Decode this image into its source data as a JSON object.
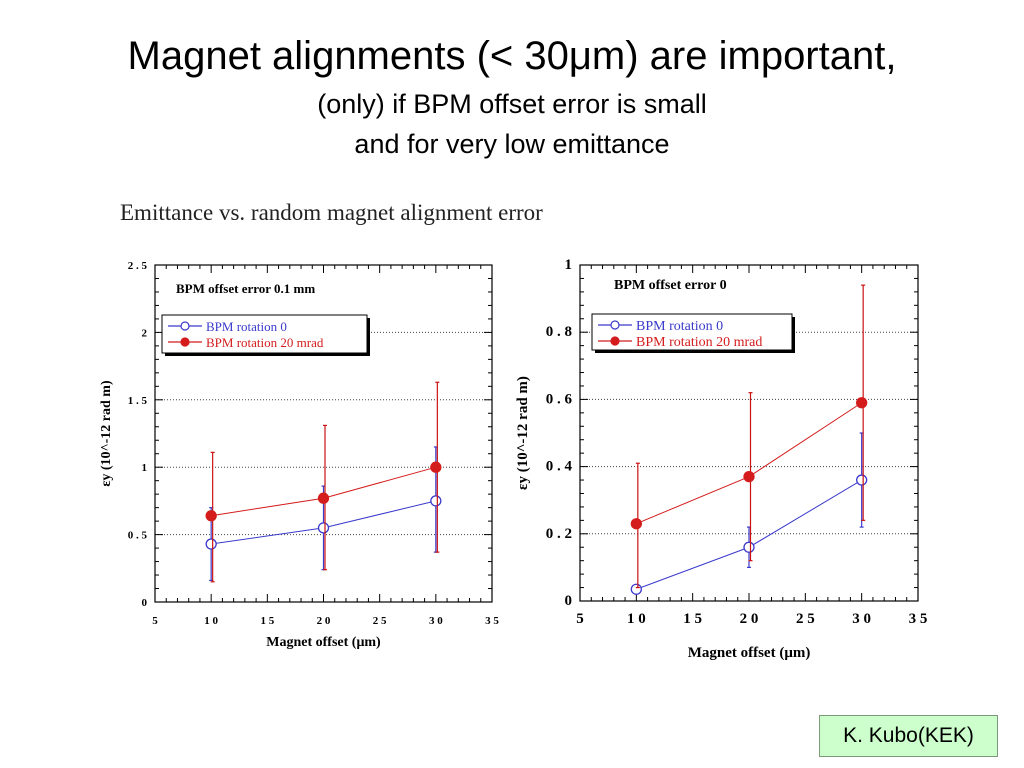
{
  "slide": {
    "title": "Magnet alignments (< 30μm) are important,",
    "subtitle_line1": "(only) if BPM offset error is small",
    "subtitle_line2": "and for very low emittance",
    "figure_heading": "Emittance vs. random magnet alignment error",
    "credit": "K. Kubo(KEK)"
  },
  "colors": {
    "series_blue": "#3a3acc",
    "series_red": "#d41c1c",
    "errorbar_red": "#cc1111",
    "badge_bg": "#ccffcc"
  },
  "chart_data": [
    {
      "type": "scatter",
      "annotation": "BPM offset error 0.1 mm",
      "xlabel": "Magnet offset (μm)",
      "ylabel": "εy (10^-12 rad m)",
      "xlim": [
        5,
        35
      ],
      "ylim": [
        0,
        2.5
      ],
      "xticks": [
        "5",
        "1 0",
        "1 5",
        "2 0",
        "2 5",
        "3 0",
        "3 5"
      ],
      "yticks": [
        "0",
        "0 . 5",
        "1",
        "1 . 5",
        "2",
        "2 . 5"
      ],
      "grid": "horizontal dotted",
      "legend": "top-left",
      "x": [
        10,
        20,
        30
      ],
      "series": [
        {
          "name": "BPM rotation 0",
          "marker": "open-circle",
          "values": [
            0.43,
            0.55,
            0.75
          ],
          "err_low": [
            0.16,
            0.24,
            0.37
          ],
          "err_high": [
            0.7,
            0.86,
            1.15
          ]
        },
        {
          "name": "BPM rotation 20 mrad",
          "marker": "filled-circle",
          "values": [
            0.64,
            0.77,
            1.0
          ],
          "err_low": [
            0.15,
            0.24,
            0.37
          ],
          "err_high": [
            1.11,
            1.31,
            1.63
          ]
        }
      ]
    },
    {
      "type": "scatter",
      "annotation": "BPM offset error 0",
      "xlabel": "Magnet offset (μm)",
      "ylabel": "εy (10^-12 rad m)",
      "xlim": [
        5,
        35
      ],
      "ylim": [
        0,
        1
      ],
      "xticks": [
        "5",
        "1 0",
        "1 5",
        "2 0",
        "2 5",
        "3 0",
        "3 5"
      ],
      "yticks": [
        "0",
        "0 . 2",
        "0 . 4",
        "0 . 6",
        "0 . 8",
        "1"
      ],
      "grid": "horizontal dotted",
      "legend": "top-left",
      "x": [
        10,
        20,
        30
      ],
      "series": [
        {
          "name": "BPM rotation 0",
          "marker": "open-circle",
          "values": [
            0.035,
            0.16,
            0.36
          ],
          "err_low": [
            0.03,
            0.1,
            0.22
          ],
          "err_high": [
            0.045,
            0.22,
            0.5
          ]
        },
        {
          "name": "BPM rotation 20 mrad",
          "marker": "filled-circle",
          "values": [
            0.23,
            0.37,
            0.59
          ],
          "err_low": [
            0.04,
            0.12,
            0.24
          ],
          "err_high": [
            0.41,
            0.62,
            0.94
          ]
        }
      ]
    }
  ]
}
